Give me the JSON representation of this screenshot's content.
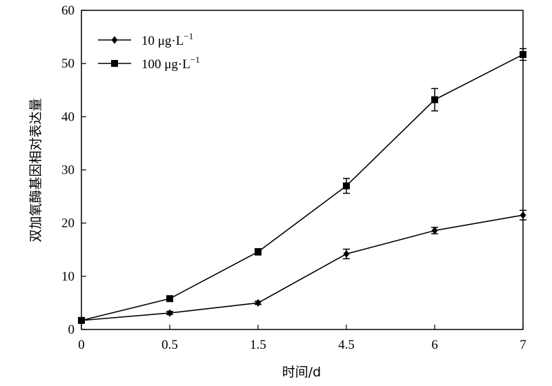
{
  "chart_data": {
    "type": "line",
    "categories": [
      "0",
      "0.5",
      "1.5",
      "4.5",
      "6",
      "7"
    ],
    "xlabel": "时间/d",
    "ylabel": "双加氧酶基因相对表达量",
    "ylim": [
      0,
      60
    ],
    "yticks": [
      "0",
      "10",
      "20",
      "30",
      "40",
      "50",
      "60"
    ],
    "legend_position": "top-left",
    "grid": false,
    "series": [
      {
        "name": "10 μg·L",
        "name_sup": "−1",
        "marker": "diamond",
        "values": [
          1.7,
          3.1,
          5.0,
          14.2,
          18.6,
          21.5
        ],
        "errors": [
          0.3,
          0.3,
          0.3,
          0.9,
          0.6,
          0.9
        ]
      },
      {
        "name": "100 μg·L",
        "name_sup": "−1",
        "marker": "square",
        "values": [
          1.7,
          5.8,
          14.6,
          27.0,
          43.2,
          51.7
        ],
        "errors": [
          0.3,
          0.4,
          0.6,
          1.4,
          2.1,
          1.1
        ]
      }
    ]
  }
}
